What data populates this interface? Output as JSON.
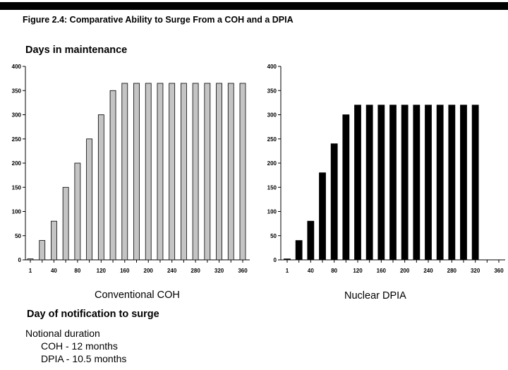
{
  "figure_title": "Figure 2.4: Comparative Ability to Surge From a COH and a DPIA",
  "y_axis_label": "Days in maintenance",
  "x_axis_label": "Day of notification to surge",
  "notes": {
    "heading": "Notional duration",
    "lines": [
      "COH - 12 months",
      "DPIA - 10.5 months"
    ]
  },
  "chart_data": [
    {
      "type": "bar",
      "caption": "Conventional COH",
      "bar_color": "#c4c4c4",
      "categories": [
        1,
        20,
        40,
        60,
        80,
        100,
        120,
        140,
        160,
        180,
        200,
        220,
        240,
        260,
        280,
        300,
        320,
        340,
        360
      ],
      "tick_labels": [
        "1",
        "40",
        "80",
        "120",
        "160",
        "200",
        "240",
        "280",
        "320",
        "360"
      ],
      "y_ticks": [
        "0",
        "50",
        "100",
        "150",
        "200",
        "250",
        "300",
        "350",
        "400"
      ],
      "values": [
        2,
        40,
        80,
        150,
        200,
        250,
        300,
        350,
        365,
        365,
        365,
        365,
        365,
        365,
        365,
        365,
        365,
        365,
        365
      ],
      "ylim": [
        0,
        400
      ]
    },
    {
      "type": "bar",
      "caption": "Nuclear DPIA",
      "bar_color": "#000000",
      "categories": [
        1,
        20,
        40,
        60,
        80,
        100,
        120,
        140,
        160,
        180,
        200,
        220,
        240,
        260,
        280,
        300,
        320,
        340,
        360
      ],
      "tick_labels": [
        "1",
        "40",
        "80",
        "120",
        "160",
        "200",
        "240",
        "280",
        "320",
        "360"
      ],
      "y_ticks": [
        "0",
        "50",
        "100",
        "150",
        "200",
        "250",
        "300",
        "350",
        "400"
      ],
      "values": [
        2,
        40,
        80,
        180,
        240,
        300,
        320,
        320,
        320,
        320,
        320,
        320,
        320,
        320,
        320,
        320,
        320,
        0,
        0
      ],
      "ylim": [
        0,
        400
      ]
    }
  ]
}
